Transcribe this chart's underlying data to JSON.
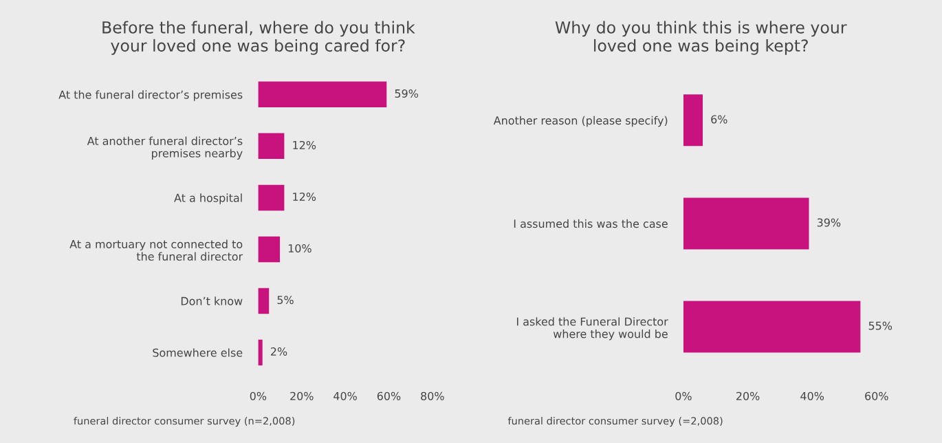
{
  "chart_data": [
    {
      "type": "bar",
      "orientation": "horizontal",
      "title": "Before the funeral, where do you think\nyour loved one was being cared for?",
      "categories": [
        "At the funeral director’s premises",
        "At another funeral director’s\npremises nearby",
        "At a hospital",
        "At a mortuary not connected to\nthe funeral director",
        "Don’t know",
        "Somewhere else"
      ],
      "values": [
        59,
        12,
        12,
        10,
        5,
        2
      ],
      "value_labels": [
        "59%",
        "12%",
        "12%",
        "10%",
        "5%",
        "2%"
      ],
      "color": "#c8127e",
      "xlim": [
        0,
        80
      ],
      "xticks": [
        {
          "value": 0,
          "label": "0%"
        },
        {
          "value": 20,
          "label": "20%"
        },
        {
          "value": 40,
          "label": "40%"
        },
        {
          "value": 60,
          "label": "60%"
        },
        {
          "value": 80,
          "label": "80%"
        }
      ],
      "grid": false,
      "legend": false,
      "annotations": [
        "funeral director consumer survey (n=2,008)"
      ]
    },
    {
      "type": "bar",
      "orientation": "horizontal",
      "title": "Why do you think this is where your\nloved one was being kept?",
      "categories": [
        "Another reason (please specify)",
        "I assumed this was the case",
        "I asked the Funeral Director\nwhere they would be"
      ],
      "values": [
        6,
        39,
        55
      ],
      "value_labels": [
        "6%",
        "39%",
        "55%"
      ],
      "color": "#c8127e",
      "xlim": [
        0,
        60
      ],
      "xticks": [
        {
          "value": 0,
          "label": "0%"
        },
        {
          "value": 20,
          "label": "20%"
        },
        {
          "value": 40,
          "label": "40%"
        },
        {
          "value": 60,
          "label": "60%"
        }
      ],
      "grid": false,
      "legend": false,
      "annotations": [
        "funeral director consumer survey (=2,008)"
      ]
    }
  ]
}
